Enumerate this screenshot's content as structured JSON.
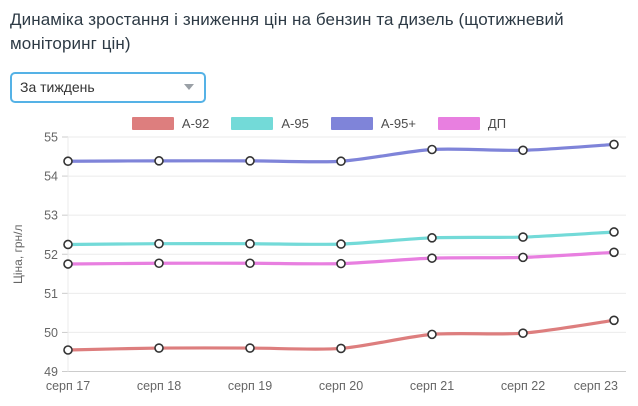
{
  "page": {
    "title": "Динаміка зростання і зниження цін на бензин та дизель (щотижневий моніторинг цін)"
  },
  "filter": {
    "selected_option": "За тиждень"
  },
  "colors": {
    "dropdown_border": "#55b2e6",
    "grid_line": "#ebebeb",
    "axis_line": "#cccccc",
    "tick_text": "#666666",
    "marker_fill": "#ffffff",
    "marker_stroke": "#333333"
  },
  "chart_data": {
    "type": "line",
    "title": "",
    "xlabel": "",
    "ylabel": "Ціна, грн/л",
    "ylim": [
      49,
      55
    ],
    "yticks": [
      55,
      54,
      53,
      52,
      51,
      50,
      49
    ],
    "grid": true,
    "legend_position": "top-center",
    "marker_style": "open-circle",
    "categories": [
      "серп 17",
      "серп 18",
      "серп 19",
      "серп 20",
      "серп 21",
      "серп 22",
      "серп 23"
    ],
    "series": [
      {
        "name": "A-92",
        "color": "#DD7E7E",
        "values": [
          49.55,
          49.6,
          49.6,
          49.59,
          49.95,
          49.98,
          50.31
        ]
      },
      {
        "name": "A-95",
        "color": "#73DAD8",
        "values": [
          52.25,
          52.27,
          52.27,
          52.26,
          52.42,
          52.44,
          52.57
        ]
      },
      {
        "name": "A-95+",
        "color": "#7F84D9",
        "values": [
          54.38,
          54.39,
          54.39,
          54.38,
          54.68,
          54.66,
          54.81
        ]
      },
      {
        "name": "ДП",
        "color": "#E87FE0",
        "values": [
          51.75,
          51.77,
          51.77,
          51.76,
          51.9,
          51.92,
          52.05
        ]
      }
    ]
  }
}
